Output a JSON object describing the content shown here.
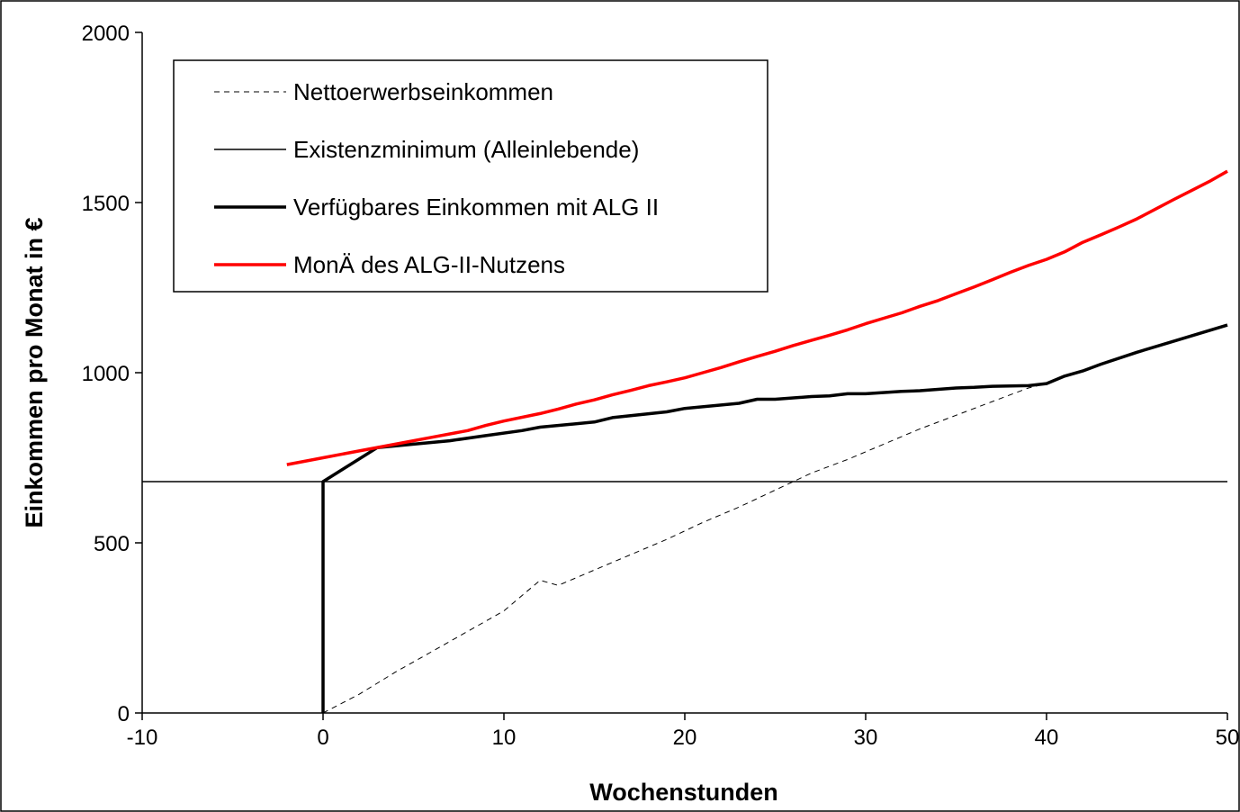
{
  "chart_data": {
    "type": "line",
    "xlabel": "Wochenstunden",
    "ylabel": "Einkommen pro Monat in €",
    "xlim": [
      -10,
      50
    ],
    "ylim": [
      0,
      2000
    ],
    "xticks": [
      -10,
      0,
      10,
      20,
      30,
      40,
      50
    ],
    "yticks": [
      0,
      500,
      1000,
      1500,
      2000
    ],
    "grid": false,
    "legend_position": "top-left",
    "series": [
      {
        "name": "Nettoerwerbseinkommen",
        "color": "#000000",
        "style": "dashed",
        "x": [
          0,
          2,
          4,
          6,
          8,
          10,
          12,
          13,
          15,
          17,
          19,
          21,
          23,
          25,
          27,
          29,
          31,
          33,
          35,
          37,
          39,
          40
        ],
        "y": [
          0,
          55,
          120,
          180,
          240,
          300,
          390,
          375,
          420,
          465,
          510,
          560,
          605,
          655,
          705,
          745,
          790,
          835,
          875,
          915,
          955,
          968
        ]
      },
      {
        "name": "Existenzminimum (Alleinlebende)",
        "color": "#000000",
        "style": "solid-thin",
        "x": [
          -10,
          50
        ],
        "y": [
          680,
          680
        ]
      },
      {
        "name": "Verfügbares Einkommen mit ALG II",
        "color": "#000000",
        "style": "solid-thick",
        "x": [
          0,
          0,
          3,
          5,
          7,
          9,
          11,
          12,
          15,
          16,
          19,
          20,
          23,
          24,
          25,
          27,
          28,
          29,
          30,
          32,
          33,
          35,
          36,
          37,
          39,
          40,
          41,
          42,
          43,
          45,
          50
        ],
        "y": [
          0,
          680,
          780,
          790,
          800,
          815,
          830,
          840,
          855,
          868,
          885,
          895,
          910,
          922,
          922,
          930,
          932,
          938,
          938,
          945,
          947,
          955,
          957,
          960,
          962,
          968,
          990,
          1005,
          1025,
          1060,
          1140
        ]
      },
      {
        "name": "MonÄ des ALG-II-Nutzens",
        "color": "#ff0000",
        "style": "solid-thick",
        "x": [
          -2,
          0,
          2,
          4,
          6,
          8,
          9,
          10,
          12,
          13,
          14,
          15,
          16,
          17,
          18,
          19,
          20,
          21,
          22,
          23,
          24,
          25,
          26,
          27,
          28,
          29,
          30,
          31,
          32,
          33,
          34,
          35,
          36,
          37,
          38,
          39,
          40,
          41,
          42,
          43,
          44,
          45,
          46,
          47,
          48,
          49,
          50
        ],
        "y": [
          730,
          750,
          770,
          790,
          810,
          830,
          845,
          858,
          880,
          893,
          908,
          920,
          935,
          948,
          962,
          973,
          985,
          1000,
          1015,
          1032,
          1048,
          1063,
          1080,
          1095,
          1110,
          1126,
          1144,
          1160,
          1176,
          1195,
          1212,
          1232,
          1252,
          1273,
          1295,
          1315,
          1333,
          1355,
          1383,
          1405,
          1428,
          1452,
          1480,
          1508,
          1535,
          1562,
          1592
        ]
      }
    ]
  }
}
